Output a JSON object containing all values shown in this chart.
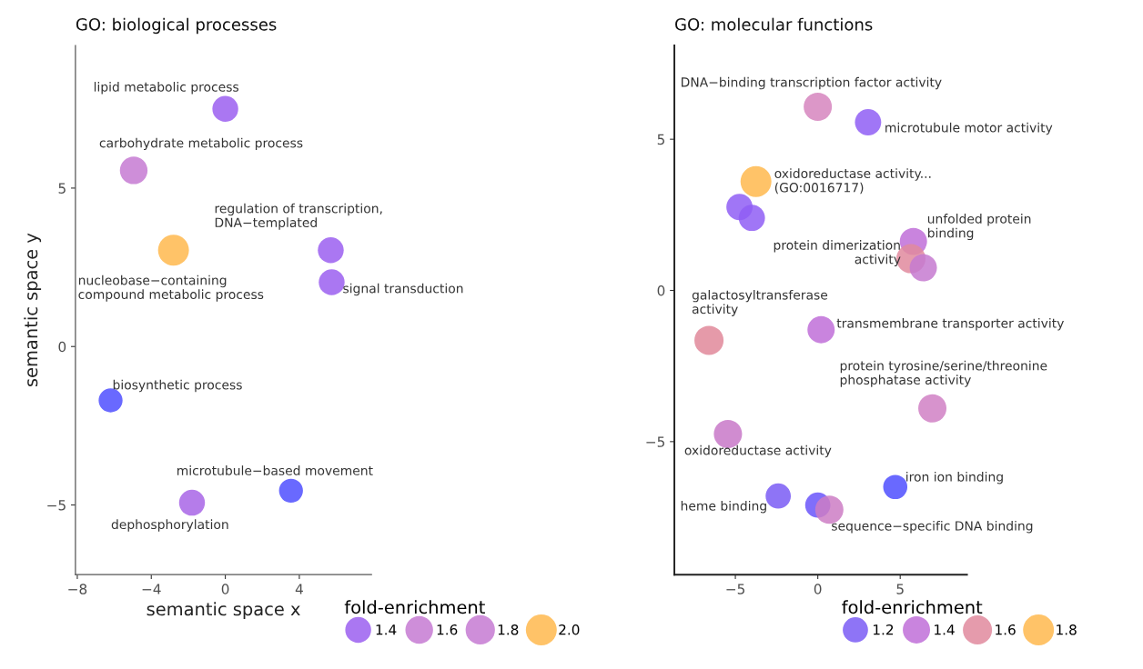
{
  "chart_data": [
    {
      "type": "bubble",
      "title": "GO: biological processes",
      "xlabel": "semantic space x",
      "ylabel": "semantic space y",
      "legend_title": "fold-enrichment",
      "x": [
        0,
        -4.95,
        -2.8,
        5.7,
        5.75,
        -6.2,
        3.55,
        -1.8
      ],
      "values": [
        7.5,
        5.56,
        3.04,
        3.04,
        2.03,
        -1.7,
        -4.55,
        -4.93
      ],
      "sizes": [
        1.4,
        1.6,
        2.0,
        1.4,
        1.4,
        1.2,
        1.2,
        1.4
      ],
      "colors": [
        "#9b5ff0",
        "#c57ad2",
        "#ffb84d",
        "#9b5ff0",
        "#9b5ff0",
        "#4f4fff",
        "#4f4fff",
        "#a865e6"
      ],
      "size_legend": [
        1.4,
        1.6,
        1.8,
        {
          "value": 2.0,
          "label": "2.0"
        }
      ],
      "xlim": [
        -8.1,
        7.9
      ],
      "ylim": [
        -7.2,
        9.5
      ],
      "xticks": [
        {
          "value": -8,
          "label": "−8"
        },
        {
          "value": -4,
          "label": "−4"
        },
        0,
        4
      ],
      "yticks": [
        {
          "value": -5,
          "label": "−5"
        },
        0,
        5
      ],
      "annotations": [
        {
          "text": "lipid metabolic process",
          "x": 0,
          "y": 7.5
        },
        {
          "text": "carbohydrate metabolic process",
          "x": -4.95,
          "y": 5.56
        },
        {
          "text": "regulation of transcription,\nDNA−templated",
          "x": 5.7,
          "y": 3.04
        },
        {
          "text": "nucleobase−containing\ncompound metabolic process",
          "x": -2.8,
          "y": 3.04
        },
        {
          "text": "signal transduction",
          "x": 5.75,
          "y": 2.03
        },
        {
          "text": "biosynthetic process",
          "x": -6.2,
          "y": -1.7
        },
        {
          "text": "microtubule−based movement",
          "x": 3.55,
          "y": -4.55
        },
        {
          "text": "dephosphorylation",
          "x": -1.8,
          "y": -4.93
        }
      ]
    },
    {
      "type": "bubble",
      "title": "GO: molecular functions",
      "legend_title": "fold-enrichment",
      "x": [
        0,
        3.05,
        -3.75,
        -4.75,
        -4.0,
        5.8,
        5.65,
        6.4,
        -6.6,
        0.2,
        6.95,
        -5.45,
        4.7,
        -2.4,
        0,
        0.7
      ],
      "values": [
        6.07,
        5.56,
        3.6,
        2.76,
        2.4,
        1.62,
        1.05,
        0.75,
        -1.65,
        -1.3,
        -3.9,
        -4.75,
        -6.5,
        -6.8,
        -7.1,
        -7.25
      ],
      "sizes": [
        1.5,
        1.3,
        1.8,
        1.3,
        1.3,
        1.4,
        1.6,
        1.4,
        1.6,
        1.4,
        1.5,
        1.5,
        1.1,
        1.2,
        1.2,
        1.5
      ],
      "colors": [
        "#d685be",
        "#8f5ef5",
        "#ffb84d",
        "#8f5ef5",
        "#8f5ef5",
        "#c06ed8",
        "#e08a9e",
        "#c67ad0",
        "#e0889a",
        "#c06ed8",
        "#d080c4",
        "#c878c8",
        "#4f4fff",
        "#7a5cf5",
        "#6a55fa",
        "#cc7cc4"
      ],
      "size_legend": [
        1.2,
        1.4,
        1.6,
        1.8
      ],
      "xlim": [
        -8.7,
        9.05
      ],
      "ylim": [
        -9.4,
        8.1
      ],
      "xticks": [
        {
          "value": -5,
          "label": "−5"
        },
        0,
        5
      ],
      "yticks": [
        {
          "value": -5,
          "label": "−5"
        },
        0,
        5
      ],
      "annotations": [
        {
          "text": "DNA−binding transcription factor activity",
          "x": 0,
          "y": 6.07
        },
        {
          "text": "microtubule motor activity",
          "x": 3.05,
          "y": 5.56
        },
        {
          "text": "oxidoreductase activity...\n(GO:0016717)",
          "x": -3.75,
          "y": 3.6
        },
        {
          "text": "protein dimerization\nactivity",
          "x": 5.65,
          "y": 1.05
        },
        {
          "text": "unfolded protein\nbinding",
          "x": 5.8,
          "y": 1.62
        },
        {
          "text": "galactosyltransferase\nactivity",
          "x": -6.6,
          "y": -1.65
        },
        {
          "text": "transmembrane transporter activity",
          "x": 0.2,
          "y": -1.3
        },
        {
          "text": "protein tyrosine/serine/threonine\nphosphatase activity",
          "x": 6.95,
          "y": -3.9
        },
        {
          "text": "oxidoreductase activity",
          "x": -5.45,
          "y": -4.75
        },
        {
          "text": "iron ion binding",
          "x": 4.7,
          "y": -6.5
        },
        {
          "text": "heme binding",
          "x": -2.4,
          "y": -6.8
        },
        {
          "text": "sequence−specific DNA binding",
          "x": 0.7,
          "y": -7.25
        }
      ]
    }
  ]
}
